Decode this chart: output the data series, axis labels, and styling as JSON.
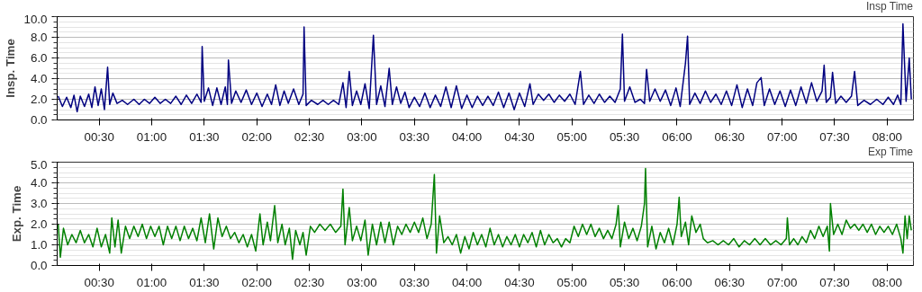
{
  "chart_data": [
    {
      "type": "line",
      "ylabel": "Insp. Time",
      "xlim": [
        0.1,
        8.25
      ],
      "ylim": [
        0,
        10
      ],
      "xticks": [
        {
          "value": 0.5,
          "label": "00:30"
        },
        {
          "value": 1,
          "label": "01:00"
        },
        {
          "value": 1.5,
          "label": "01:30"
        },
        {
          "value": 2,
          "label": "02:00"
        },
        {
          "value": 2.5,
          "label": "02:30"
        },
        {
          "value": 3,
          "label": "03:00"
        },
        {
          "value": 3.5,
          "label": "03:30"
        },
        {
          "value": 4,
          "label": "04:00"
        },
        {
          "value": 4.5,
          "label": "04:30"
        },
        {
          "value": 5,
          "label": "05:00"
        },
        {
          "value": 5.5,
          "label": "05:30"
        },
        {
          "value": 6,
          "label": "06:00"
        },
        {
          "value": 6.5,
          "label": "06:30"
        },
        {
          "value": 7,
          "label": "07:00"
        },
        {
          "value": 7.5,
          "label": "07:30"
        },
        {
          "value": 8,
          "label": "08:00"
        }
      ],
      "yticks": [
        {
          "value": 0,
          "label": "0.0"
        },
        {
          "value": 2,
          "label": "2.0"
        },
        {
          "value": 4,
          "label": "4.0"
        },
        {
          "value": 6,
          "label": "6.0"
        },
        {
          "value": 8,
          "label": "8.0"
        },
        {
          "value": 10,
          "label": "10.0"
        }
      ],
      "grid": "y",
      "legend": "top right",
      "marker": "none",
      "line_style": "solid",
      "series": [
        {
          "name": "Insp Time",
          "color": "#000080",
          "x": [
            0.11,
            0.15,
            0.19,
            0.23,
            0.26,
            0.29,
            0.32,
            0.36,
            0.4,
            0.43,
            0.46,
            0.49,
            0.52,
            0.55,
            0.58,
            0.6,
            0.63,
            0.67,
            0.72,
            0.77,
            0.83,
            0.88,
            0.93,
            0.98,
            1.03,
            1.08,
            1.13,
            1.18,
            1.23,
            1.28,
            1.33,
            1.38,
            1.43,
            1.47,
            1.48,
            1.5,
            1.54,
            1.58,
            1.62,
            1.66,
            1.7,
            1.72,
            1.73,
            1.76,
            1.8,
            1.85,
            1.9,
            1.95,
            2.0,
            2.05,
            2.1,
            2.14,
            2.18,
            2.22,
            2.26,
            2.3,
            2.35,
            2.4,
            2.44,
            2.45,
            2.47,
            2.52,
            2.58,
            2.63,
            2.68,
            2.73,
            2.78,
            2.82,
            2.85,
            2.88,
            2.91,
            2.95,
            2.99,
            3.03,
            3.07,
            3.11,
            3.14,
            3.18,
            3.22,
            3.26,
            3.29,
            3.33,
            3.37,
            3.41,
            3.45,
            3.5,
            3.55,
            3.6,
            3.65,
            3.7,
            3.75,
            3.8,
            3.85,
            3.9,
            3.95,
            4.0,
            4.05,
            4.1,
            4.15,
            4.2,
            4.25,
            4.3,
            4.35,
            4.4,
            4.45,
            4.5,
            4.55,
            4.6,
            4.63,
            4.68,
            4.73,
            4.78,
            4.83,
            4.88,
            4.93,
            4.98,
            5.03,
            5.08,
            5.11,
            5.16,
            5.21,
            5.26,
            5.31,
            5.36,
            5.41,
            5.46,
            5.48,
            5.5,
            5.55,
            5.6,
            5.65,
            5.69,
            5.71,
            5.74,
            5.79,
            5.84,
            5.89,
            5.94,
            5.99,
            6.03,
            6.08,
            6.1,
            6.12,
            6.17,
            6.22,
            6.27,
            6.32,
            6.37,
            6.42,
            6.47,
            6.52,
            6.57,
            6.62,
            6.67,
            6.72,
            6.76,
            6.8,
            6.83,
            6.88,
            6.93,
            6.98,
            7.03,
            7.08,
            7.13,
            7.18,
            7.23,
            7.28,
            7.33,
            7.38,
            7.4,
            7.42,
            7.46,
            7.48,
            7.51,
            7.56,
            7.61,
            7.66,
            7.69,
            7.72,
            7.78,
            7.84,
            7.9,
            7.96,
            8.01,
            8.06,
            8.1,
            8.13,
            8.15,
            8.18,
            8.21,
            8.23
          ],
          "values": [
            2.3,
            1.3,
            2.2,
            1.2,
            2.4,
            0.8,
            2.3,
            1.3,
            2.5,
            1.2,
            3.2,
            1.4,
            3.0,
            1.0,
            5.1,
            1.5,
            2.6,
            1.6,
            1.9,
            1.5,
            2.0,
            1.5,
            2.0,
            1.6,
            2.2,
            1.6,
            2.0,
            1.6,
            2.3,
            1.5,
            2.4,
            1.6,
            2.5,
            1.7,
            7.1,
            1.8,
            3.1,
            1.4,
            3.1,
            1.5,
            3.2,
            1.5,
            5.8,
            1.6,
            2.8,
            1.7,
            2.9,
            1.5,
            2.6,
            1.3,
            2.5,
            1.5,
            3.4,
            1.4,
            2.8,
            1.6,
            3.0,
            1.5,
            2.5,
            9.0,
            1.4,
            1.9,
            1.5,
            1.9,
            1.5,
            1.9,
            1.5,
            3.6,
            1.2,
            4.7,
            1.4,
            2.8,
            1.5,
            3.5,
            1.1,
            8.2,
            1.5,
            3.3,
            1.3,
            5.0,
            1.5,
            3.2,
            1.6,
            2.7,
            1.2,
            2.2,
            1.3,
            2.6,
            1.2,
            2.4,
            1.3,
            3.2,
            1.2,
            3.3,
            1.1,
            2.4,
            1.2,
            2.3,
            1.4,
            2.3,
            1.4,
            2.7,
            1.2,
            2.6,
            1.0,
            2.6,
            1.3,
            3.5,
            1.5,
            2.5,
            1.9,
            2.5,
            1.7,
            2.4,
            1.8,
            2.5,
            1.5,
            4.7,
            1.5,
            2.4,
            1.6,
            2.5,
            1.7,
            2.3,
            1.7,
            3.0,
            8.3,
            1.8,
            3.2,
            1.7,
            2.0,
            1.6,
            4.9,
            1.8,
            3.0,
            1.8,
            2.9,
            1.4,
            3.1,
            1.3,
            5.5,
            8.1,
            1.5,
            2.6,
            1.6,
            2.8,
            1.7,
            2.5,
            1.5,
            2.8,
            1.4,
            3.4,
            1.2,
            3.0,
            1.4,
            3.6,
            4.1,
            1.4,
            3.0,
            1.5,
            2.8,
            1.3,
            2.9,
            1.4,
            3.2,
            1.6,
            3.6,
            1.8,
            2.8,
            5.3,
            1.7,
            2.2,
            4.6,
            1.6,
            2.3,
            1.7,
            2.3,
            4.7,
            1.4,
            1.9,
            1.5,
            2.0,
            1.5,
            2.2,
            1.5,
            2.4,
            1.5,
            9.3,
            1.8,
            6.0,
            2.0
          ]
        }
      ]
    },
    {
      "type": "line",
      "ylabel": "Exp. Time",
      "xlim": [
        0.1,
        8.25
      ],
      "ylim": [
        0,
        5
      ],
      "xticks": [
        {
          "value": 0.5,
          "label": "00:30"
        },
        {
          "value": 1,
          "label": "01:00"
        },
        {
          "value": 1.5,
          "label": "01:30"
        },
        {
          "value": 2,
          "label": "02:00"
        },
        {
          "value": 2.5,
          "label": "02:30"
        },
        {
          "value": 3,
          "label": "03:00"
        },
        {
          "value": 3.5,
          "label": "03:30"
        },
        {
          "value": 4,
          "label": "04:00"
        },
        {
          "value": 4.5,
          "label": "04:30"
        },
        {
          "value": 5,
          "label": "05:00"
        },
        {
          "value": 5.5,
          "label": "05:30"
        },
        {
          "value": 6,
          "label": "06:00"
        },
        {
          "value": 6.5,
          "label": "06:30"
        },
        {
          "value": 7,
          "label": "07:00"
        },
        {
          "value": 7.5,
          "label": "07:30"
        },
        {
          "value": 8,
          "label": "08:00"
        }
      ],
      "yticks": [
        {
          "value": 0,
          "label": "0.0"
        },
        {
          "value": 1,
          "label": "1.0"
        },
        {
          "value": 2,
          "label": "2.0"
        },
        {
          "value": 3,
          "label": "3.0"
        },
        {
          "value": 4,
          "label": "4.0"
        },
        {
          "value": 5,
          "label": "5.0"
        }
      ],
      "grid": "y",
      "legend": "top right",
      "marker": "none",
      "line_style": "solid",
      "series": [
        {
          "name": "Exp Time",
          "color": "#008000",
          "x": [
            0.11,
            0.13,
            0.16,
            0.2,
            0.24,
            0.28,
            0.32,
            0.36,
            0.4,
            0.44,
            0.48,
            0.52,
            0.56,
            0.6,
            0.62,
            0.65,
            0.68,
            0.71,
            0.75,
            0.79,
            0.83,
            0.87,
            0.91,
            0.95,
            0.99,
            1.03,
            1.07,
            1.11,
            1.15,
            1.19,
            1.23,
            1.27,
            1.31,
            1.35,
            1.39,
            1.43,
            1.47,
            1.51,
            1.55,
            1.59,
            1.63,
            1.67,
            1.71,
            1.75,
            1.79,
            1.83,
            1.87,
            1.91,
            1.95,
            1.99,
            2.03,
            2.06,
            2.1,
            2.13,
            2.17,
            2.2,
            2.24,
            2.27,
            2.31,
            2.34,
            2.37,
            2.41,
            2.44,
            2.47,
            2.51,
            2.55,
            2.6,
            2.65,
            2.7,
            2.75,
            2.8,
            2.82,
            2.84,
            2.88,
            2.91,
            2.95,
            2.99,
            3.03,
            3.06,
            3.1,
            3.14,
            3.18,
            3.22,
            3.26,
            3.3,
            3.34,
            3.38,
            3.42,
            3.46,
            3.5,
            3.54,
            3.58,
            3.62,
            3.66,
            3.69,
            3.71,
            3.74,
            3.78,
            3.82,
            3.86,
            3.9,
            3.94,
            3.98,
            4.02,
            4.06,
            4.1,
            4.14,
            4.18,
            4.22,
            4.26,
            4.3,
            4.34,
            4.38,
            4.42,
            4.46,
            4.5,
            4.54,
            4.58,
            4.62,
            4.66,
            4.7,
            4.74,
            4.78,
            4.82,
            4.86,
            4.9,
            4.94,
            4.98,
            5.02,
            5.06,
            5.1,
            5.14,
            5.18,
            5.22,
            5.26,
            5.3,
            5.34,
            5.38,
            5.42,
            5.44,
            5.46,
            5.5,
            5.54,
            5.58,
            5.62,
            5.66,
            5.69,
            5.7,
            5.72,
            5.76,
            5.8,
            5.84,
            5.88,
            5.92,
            5.96,
            6.0,
            6.02,
            6.04,
            6.08,
            6.11,
            6.14,
            6.18,
            6.22,
            6.25,
            6.29,
            6.34,
            6.39,
            6.44,
            6.49,
            6.54,
            6.59,
            6.64,
            6.69,
            6.74,
            6.79,
            6.84,
            6.89,
            6.94,
            6.99,
            7.04,
            7.05,
            7.07,
            7.11,
            7.15,
            7.19,
            7.23,
            7.27,
            7.31,
            7.35,
            7.39,
            7.43,
            7.45,
            7.46,
            7.49,
            7.53,
            7.57,
            7.61,
            7.65,
            7.69,
            7.73,
            7.77,
            7.81,
            7.85,
            7.89,
            7.93,
            7.97,
            8.01,
            8.05,
            8.09,
            8.13,
            8.15,
            8.17,
            8.19,
            8.21,
            8.23
          ],
          "values": [
            2.0,
            0.4,
            1.8,
            1.0,
            1.5,
            1.1,
            1.7,
            1.1,
            1.5,
            0.9,
            1.8,
            0.9,
            1.5,
            0.6,
            2.3,
            0.9,
            2.2,
            0.6,
            1.9,
            1.3,
            1.9,
            1.4,
            2.0,
            1.3,
            1.9,
            1.4,
            1.9,
            1.0,
            1.9,
            1.3,
            1.9,
            1.2,
            1.9,
            1.3,
            1.8,
            1.2,
            2.3,
            1.1,
            2.5,
            0.8,
            2.3,
            1.4,
            1.9,
            1.3,
            1.6,
            1.1,
            1.5,
            0.9,
            1.5,
            0.7,
            2.5,
            1.0,
            2.1,
            1.2,
            2.9,
            1.1,
            2.0,
            1.0,
            1.8,
            0.3,
            1.7,
            1.0,
            1.6,
            0.5,
            1.9,
            1.6,
            2.0,
            1.7,
            2.0,
            1.6,
            1.9,
            3.7,
            1.0,
            2.8,
            1.2,
            1.9,
            1.2,
            2.2,
            0.5,
            2.0,
            1.0,
            2.1,
            1.1,
            2.1,
            1.0,
            1.9,
            1.5,
            2.0,
            1.6,
            2.1,
            1.6,
            2.3,
            1.3,
            2.0,
            4.4,
            0.6,
            2.4,
            1.1,
            1.4,
            1.0,
            1.5,
            0.6,
            1.4,
            0.8,
            1.6,
            1.0,
            1.5,
            0.9,
            1.8,
            1.0,
            1.5,
            0.9,
            1.4,
            1.0,
            1.5,
            0.9,
            1.5,
            1.1,
            1.6,
            0.9,
            1.7,
            1.0,
            1.5,
            1.1,
            1.3,
            0.9,
            1.3,
            1.1,
            1.9,
            1.4,
            2.0,
            1.5,
            2.0,
            1.4,
            1.8,
            1.3,
            1.7,
            1.3,
            2.0,
            2.9,
            0.9,
            2.1,
            1.3,
            1.8,
            1.2,
            1.9,
            3.0,
            4.7,
            0.9,
            1.9,
            0.8,
            1.6,
            1.1,
            1.8,
            1.0,
            2.0,
            3.3,
            1.4,
            2.1,
            1.0,
            2.4,
            1.6,
            2.0,
            1.3,
            1.1,
            1.2,
            1.0,
            1.2,
            1.0,
            1.3,
            0.9,
            1.2,
            1.0,
            1.3,
            1.0,
            1.3,
            1.0,
            1.2,
            1.0,
            1.3,
            2.3,
            1.0,
            1.3,
            1.0,
            1.4,
            1.1,
            1.7,
            1.3,
            1.9,
            1.4,
            1.9,
            0.7,
            3.0,
            1.5,
            2.0,
            1.5,
            2.2,
            1.8,
            2.0,
            1.7,
            2.0,
            1.6,
            2.0,
            1.5,
            1.9,
            1.6,
            1.9,
            1.5,
            2.0,
            1.3,
            0.6,
            2.4,
            1.3,
            2.4,
            1.7
          ]
        }
      ]
    }
  ]
}
